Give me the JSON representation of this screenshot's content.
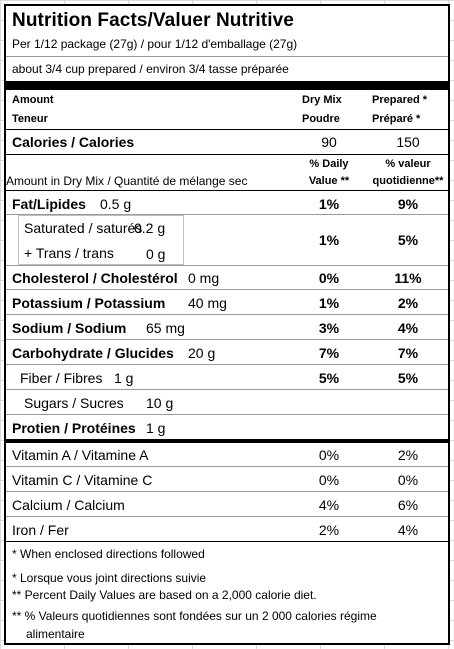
{
  "title": "Nutrition Facts/Valuer Nutritive",
  "serving_size": "Per 1/12 package (27g) / pour 1/12 d'emballage (27g)",
  "serving_prepared": "about 3/4 cup prepared / environ 3/4 tasse préparée",
  "headers": {
    "amount": "Amount",
    "teneur": "Teneur",
    "dry_mix": "Dry Mix",
    "poudre": "Poudre",
    "prepared": "Prepared *",
    "prepare_fr": "Préparé *"
  },
  "calories": {
    "label": "Calories / Calories",
    "dry": "90",
    "prepared": "150"
  },
  "dv_headers": {
    "pct_daily": "% Daily",
    "value": "Value **",
    "pct_valeur": "% valeur",
    "quotidienne": "quotidienne**"
  },
  "amount_note": "Amount in Dry Mix / Quantité de mélange sec",
  "nutrients": {
    "fat": {
      "label": "Fat/Lipides",
      "amount": "0.5 g",
      "dry": "1%",
      "prepared": "9%"
    },
    "saturated": {
      "label": "Saturated / saturés",
      "amount": "0.2 g"
    },
    "trans": {
      "label": "+ Trans / trans",
      "amount": "0 g",
      "dry": "1%",
      "prepared": "5%"
    },
    "cholesterol": {
      "label": "Cholesterol / Cholestérol",
      "amount": "0 mg",
      "dry": "0%",
      "prepared": "11%"
    },
    "potassium": {
      "label": "Potassium / Potassium",
      "amount": "40 mg",
      "dry": "1%",
      "prepared": "2%"
    },
    "sodium": {
      "label": "Sodium / Sodium",
      "amount": "65 mg",
      "dry": "3%",
      "prepared": "4%"
    },
    "carbohydrate": {
      "label": "Carbohydrate / Glucides",
      "amount": "20 g",
      "dry": "7%",
      "prepared": "7%"
    },
    "fiber": {
      "label": "Fiber / Fibres",
      "amount": "1 g",
      "dry": "5%",
      "prepared": "5%"
    },
    "sugars": {
      "label": "Sugars / Sucres",
      "amount": "10 g"
    },
    "protein": {
      "label": "Protien / Protéines",
      "amount": "1 g"
    }
  },
  "vitamins": [
    {
      "label": "Vitamin A / Vitamine A",
      "dry": "0%",
      "prepared": "2%"
    },
    {
      "label": "Vitamin C / Vitamine C",
      "dry": "0%",
      "prepared": "0%"
    },
    {
      "label": "Calcium / Calcium",
      "dry": "4%",
      "prepared": "6%"
    },
    {
      "label": "Iron / Fer",
      "dry": "2%",
      "prepared": "4%"
    }
  ],
  "footnotes": [
    "* When enclosed directions followed",
    "* Lorsque vous joint directions suivie",
    "** Percent Daily Values are based on a 2,000 calorie diet.",
    "** % Valeurs quotidiennes sont fondées sur un 2 000 calories régime",
    "alimentaire"
  ]
}
